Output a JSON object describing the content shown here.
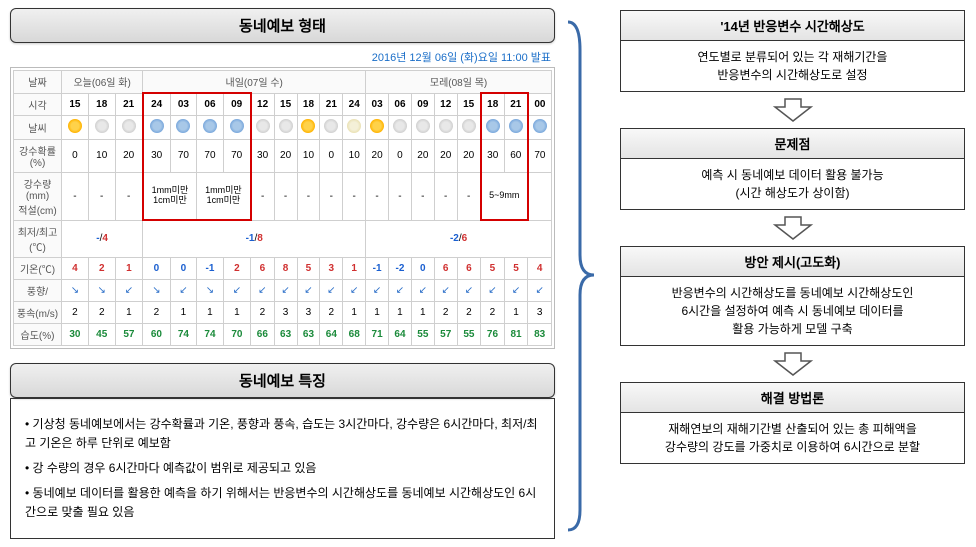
{
  "left": {
    "header1": "동네예보 형태",
    "publish": "2016년 12월 06일 (화)요일 11:00 발표",
    "dayHeaders": [
      "날짜",
      "오늘(06일 화)",
      "내일(07일 수)",
      "모레(08일 목)"
    ],
    "rowLabels": {
      "time": "시각",
      "weather": "날씨",
      "precipProb": "강수확률(%)",
      "precipAmt": "강수량(mm)\n적설(cm)",
      "minmax": "최저/최고(℃)",
      "temp": "기온(℃)",
      "wind": "풍향/",
      "windspd": "풍속(m/s)",
      "humidity": "습도(%)"
    },
    "times": [
      "15",
      "18",
      "21",
      "24",
      "03",
      "06",
      "09",
      "12",
      "15",
      "18",
      "21",
      "24",
      "03",
      "06",
      "09",
      "12",
      "15",
      "18",
      "21",
      "00"
    ],
    "weatherIcons": [
      "sun",
      "cloud",
      "cloud",
      "rain",
      "rain",
      "rain",
      "rain",
      "cloud",
      "cloud",
      "sun",
      "cloud",
      "moon",
      "sun",
      "cloud",
      "cloud",
      "cloud",
      "cloud",
      "rain",
      "rain",
      "rain"
    ],
    "precipProb": [
      "0",
      "10",
      "20",
      "30",
      "70",
      "70",
      "70",
      "30",
      "20",
      "10",
      "0",
      "10",
      "20",
      "0",
      "20",
      "20",
      "20",
      "30",
      "60",
      "70"
    ],
    "precipAmt": [
      "-",
      "-",
      "-",
      "1mm미만\n1cm미만",
      "",
      "1mm미만\n1cm미만",
      "",
      "-",
      "-",
      "-",
      "-",
      "-",
      "-",
      "-",
      "-",
      "-",
      "-",
      "5~9mm",
      "",
      ""
    ],
    "minmaxVals": [
      "-/4",
      "-1/8",
      "-2/6"
    ],
    "temps": [
      "4",
      "2",
      "1",
      "0",
      "0",
      "-1",
      "2",
      "6",
      "8",
      "5",
      "3",
      "1",
      "-1",
      "-2",
      "0",
      "6",
      "6",
      "5",
      "5",
      "4"
    ],
    "windDir": [
      "↘",
      "↘",
      "↙",
      "↘",
      "↙",
      "↘",
      "↙",
      "↙",
      "↙",
      "↙",
      "↙",
      "↙",
      "↙",
      "↙",
      "↙",
      "↙",
      "↙",
      "↙",
      "↙",
      "↙"
    ],
    "windSpd": [
      "2",
      "2",
      "1",
      "2",
      "1",
      "1",
      "1",
      "2",
      "3",
      "3",
      "2",
      "1",
      "1",
      "1",
      "1",
      "2",
      "2",
      "2",
      "1",
      "3"
    ],
    "humidity": [
      "30",
      "45",
      "57",
      "60",
      "74",
      "74",
      "70",
      "66",
      "63",
      "63",
      "64",
      "68",
      "71",
      "64",
      "55",
      "57",
      "55",
      "76",
      "81",
      "83"
    ],
    "header2": "동네예보 특징",
    "bullets": [
      "기상청 동네예보에서는 강수확률과 기온, 풍향과 풍속, 습도는   3시간마다, 강수량은 6시간마다, 최저/최고 기온은 하루 단위로 예보함",
      "강 수량의 경우 6시간마다 예측값이 범위로 제공되고 있음",
      "동네예보 데이터를 활용한 예측을 하기 위해서는 반응변수의 시간해상도를 동네예보 시간해상도인 6시간으로 맞출 필요 있음"
    ]
  },
  "right": {
    "blocks": [
      {
        "title": "'14년 반응변수 시간해상도",
        "body": "연도별로 분류되어 있는 각 재해기간을\n반응변수의 시간해상도로 설정"
      },
      {
        "title": "문제점",
        "body": "예측 시 동네예보 데이터 활용 불가능\n(시간 해상도가 상이함)"
      },
      {
        "title": "방안 제시(고도화)",
        "body": "반응변수의 시간해상도를 동네예보 시간해상도인\n6시간을 설정하여 예측 시 동네예보 데이터를\n활용 가능하게 모델 구축"
      },
      {
        "title": "해결 방법론",
        "body": "재해연보의 재해기간별 산출되어 있는 총 피해액을\n강수량의 강도를 가중치로 이용하여 6시간으로 분할"
      }
    ]
  },
  "colors": {
    "redbox": "#d40000",
    "blueText": "#1a6ec8"
  },
  "redboxCols": {
    "a_start": 3,
    "a_end": 6,
    "b_start": 17,
    "b_end": 18
  }
}
